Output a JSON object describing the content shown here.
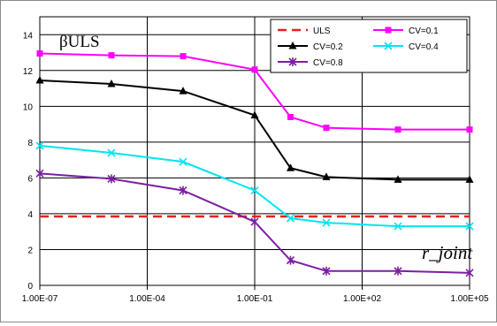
{
  "chart_data": {
    "type": "line",
    "title": "",
    "xlabel": "r_joint",
    "ylabel": "βULS",
    "x_scale": "log",
    "x": [
      "1.00E-07",
      "1.00E-05",
      "1.00E-03",
      "1.00E-01",
      "1.00E+00",
      "1.00E+01",
      "1.00E+03",
      "1.00E+05"
    ],
    "x_values": [
      1e-07,
      1e-05,
      0.001,
      0.1,
      1,
      10,
      1000,
      100000
    ],
    "xticks": [
      "1.00E-07",
      "1.00E-04",
      "1.00E-01",
      "1.00E+02",
      "1.00E+05"
    ],
    "xtick_values": [
      1e-07,
      0.0001,
      0.1,
      100,
      100000
    ],
    "yticks": [
      0,
      2,
      4,
      6,
      8,
      10,
      12,
      14
    ],
    "xlim": [
      1e-07,
      100000
    ],
    "ylim": [
      0,
      15
    ],
    "grid": "horizontal and vertical",
    "legend_position": "top-right",
    "series": [
      {
        "name": "ULS",
        "values": [
          3.85,
          3.85,
          3.85,
          3.85,
          3.85,
          3.85,
          3.85,
          3.85
        ],
        "color": "#e8201c",
        "style": "dashed",
        "marker": "none"
      },
      {
        "name": "CV=0.1",
        "values": [
          12.95,
          12.85,
          12.8,
          12.05,
          9.4,
          8.8,
          8.7,
          8.7
        ],
        "color": "#ff00ff",
        "style": "solid",
        "marker": "square"
      },
      {
        "name": "CV=0.2",
        "values": [
          11.45,
          11.25,
          10.85,
          9.5,
          6.55,
          6.05,
          5.9,
          5.9
        ],
        "color": "#000000",
        "style": "solid",
        "marker": "triangle"
      },
      {
        "name": "CV=0.4",
        "values": [
          7.8,
          7.4,
          6.9,
          5.3,
          3.75,
          3.5,
          3.3,
          3.3
        ],
        "color": "#00e5f0",
        "style": "solid",
        "marker": "x"
      },
      {
        "name": "CV=0.8",
        "values": [
          6.25,
          5.95,
          5.3,
          3.55,
          1.4,
          0.8,
          0.8,
          0.7
        ],
        "color": "#7b1fa2",
        "style": "solid",
        "marker": "star"
      }
    ]
  }
}
